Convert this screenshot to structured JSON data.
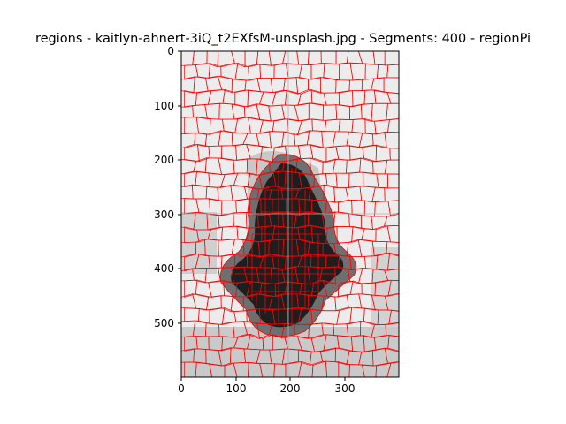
{
  "figure": {
    "title": "regions - kaitlyn-ahnert-3iQ_t2EXfsM-unsplash.jpg - Segments: 400 - regionPi"
  },
  "axes": {
    "x_ticks": [
      "0",
      "100",
      "200",
      "300"
    ],
    "y_ticks": [
      "0",
      "100",
      "200",
      "300",
      "400",
      "500"
    ],
    "xlim": [
      0,
      400
    ],
    "ylim": [
      600,
      0
    ],
    "grid": true,
    "boundary_color": "#ff0000",
    "light_color": "#e9e9e9",
    "mid_color": "#c4c4c4",
    "dark_color": "#6a6a6a",
    "black_color": "#1c1c1c"
  }
}
